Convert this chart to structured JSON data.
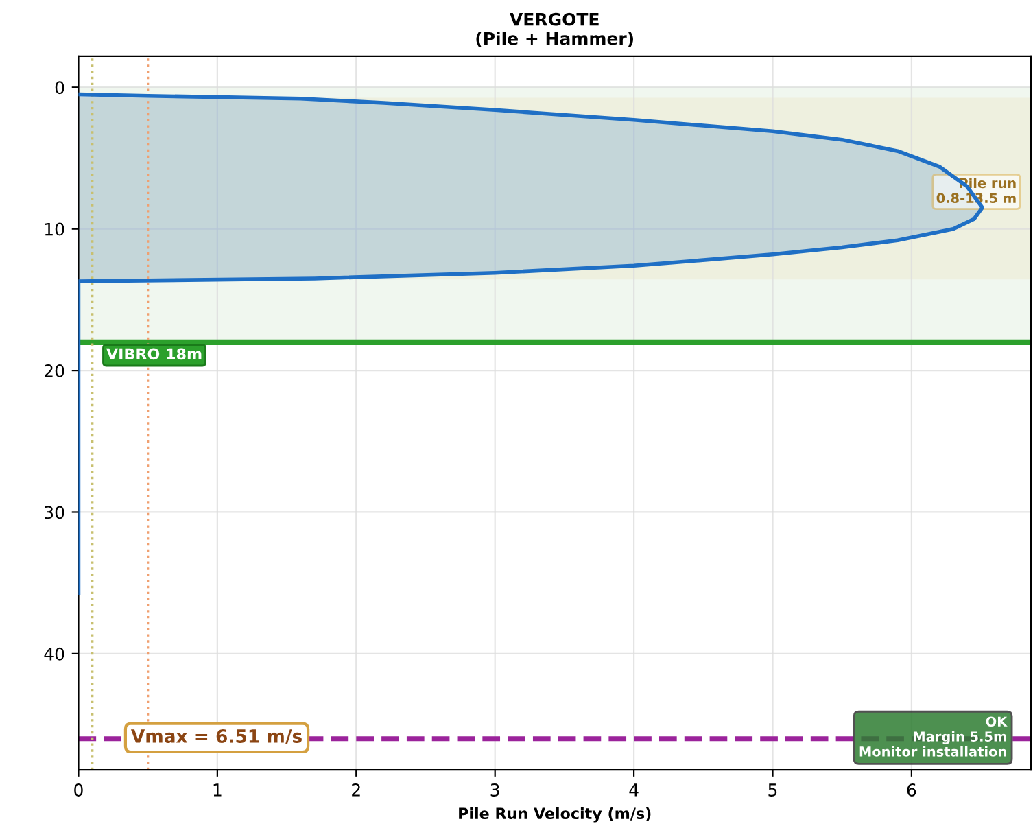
{
  "chart_data": {
    "type": "area",
    "title": "VERGOTE\n(Pile + Hammer)",
    "xlabel": "Pile Run Velocity (m/s)",
    "series": [
      {
        "color": "#1f6fc5",
        "x": [
          0,
          0.5,
          1.6,
          2.2,
          3.0,
          4.0,
          5.0,
          5.5,
          5.9,
          6.2,
          6.4,
          6.51,
          6.45,
          6.3,
          5.9,
          5.5,
          5.0,
          4.0,
          3.0,
          1.7,
          0,
          0
        ],
        "values": [
          0.5,
          0.6,
          0.8,
          1.1,
          1.6,
          2.3,
          3.1,
          3.7,
          4.5,
          5.6,
          7.0,
          8.5,
          9.3,
          10.0,
          10.8,
          11.3,
          11.8,
          12.6,
          13.1,
          13.5,
          13.7,
          35.7
        ]
      }
    ],
    "xlim": [
      0,
      6.86
    ],
    "ylim": [
      48.2,
      -2.2
    ],
    "xticks": [
      0,
      1,
      2,
      3,
      4,
      5,
      6
    ],
    "yticks": [
      0,
      10,
      20,
      30,
      40
    ],
    "grid": true,
    "legend": false,
    "bands": [
      {
        "axis": "y",
        "from": 0,
        "to": 18,
        "color": "#f0f7ef"
      },
      {
        "axis": "y",
        "from": 0.8,
        "to": 13.5,
        "color": "#eef0df"
      }
    ],
    "ref_lines": [
      {
        "axis": "y",
        "value": 18,
        "label": "VIBRO 18m",
        "color": "#2ca02c",
        "line_style": "solid"
      },
      {
        "axis": "y",
        "value": 46,
        "color": "#9b239b",
        "line_style": "dashed"
      },
      {
        "axis": "x",
        "value": 0.1,
        "color": "#c8c070",
        "line_style": "dotted"
      },
      {
        "axis": "x",
        "value": 0.5,
        "color": "#f0a070",
        "line_style": "dotted"
      }
    ],
    "annotations": [
      "Pile run\n0.8-13.5 m",
      "Vmax = 6.51 m/s",
      "OK\nMargin 5.5m\nMonitor installation"
    ]
  }
}
